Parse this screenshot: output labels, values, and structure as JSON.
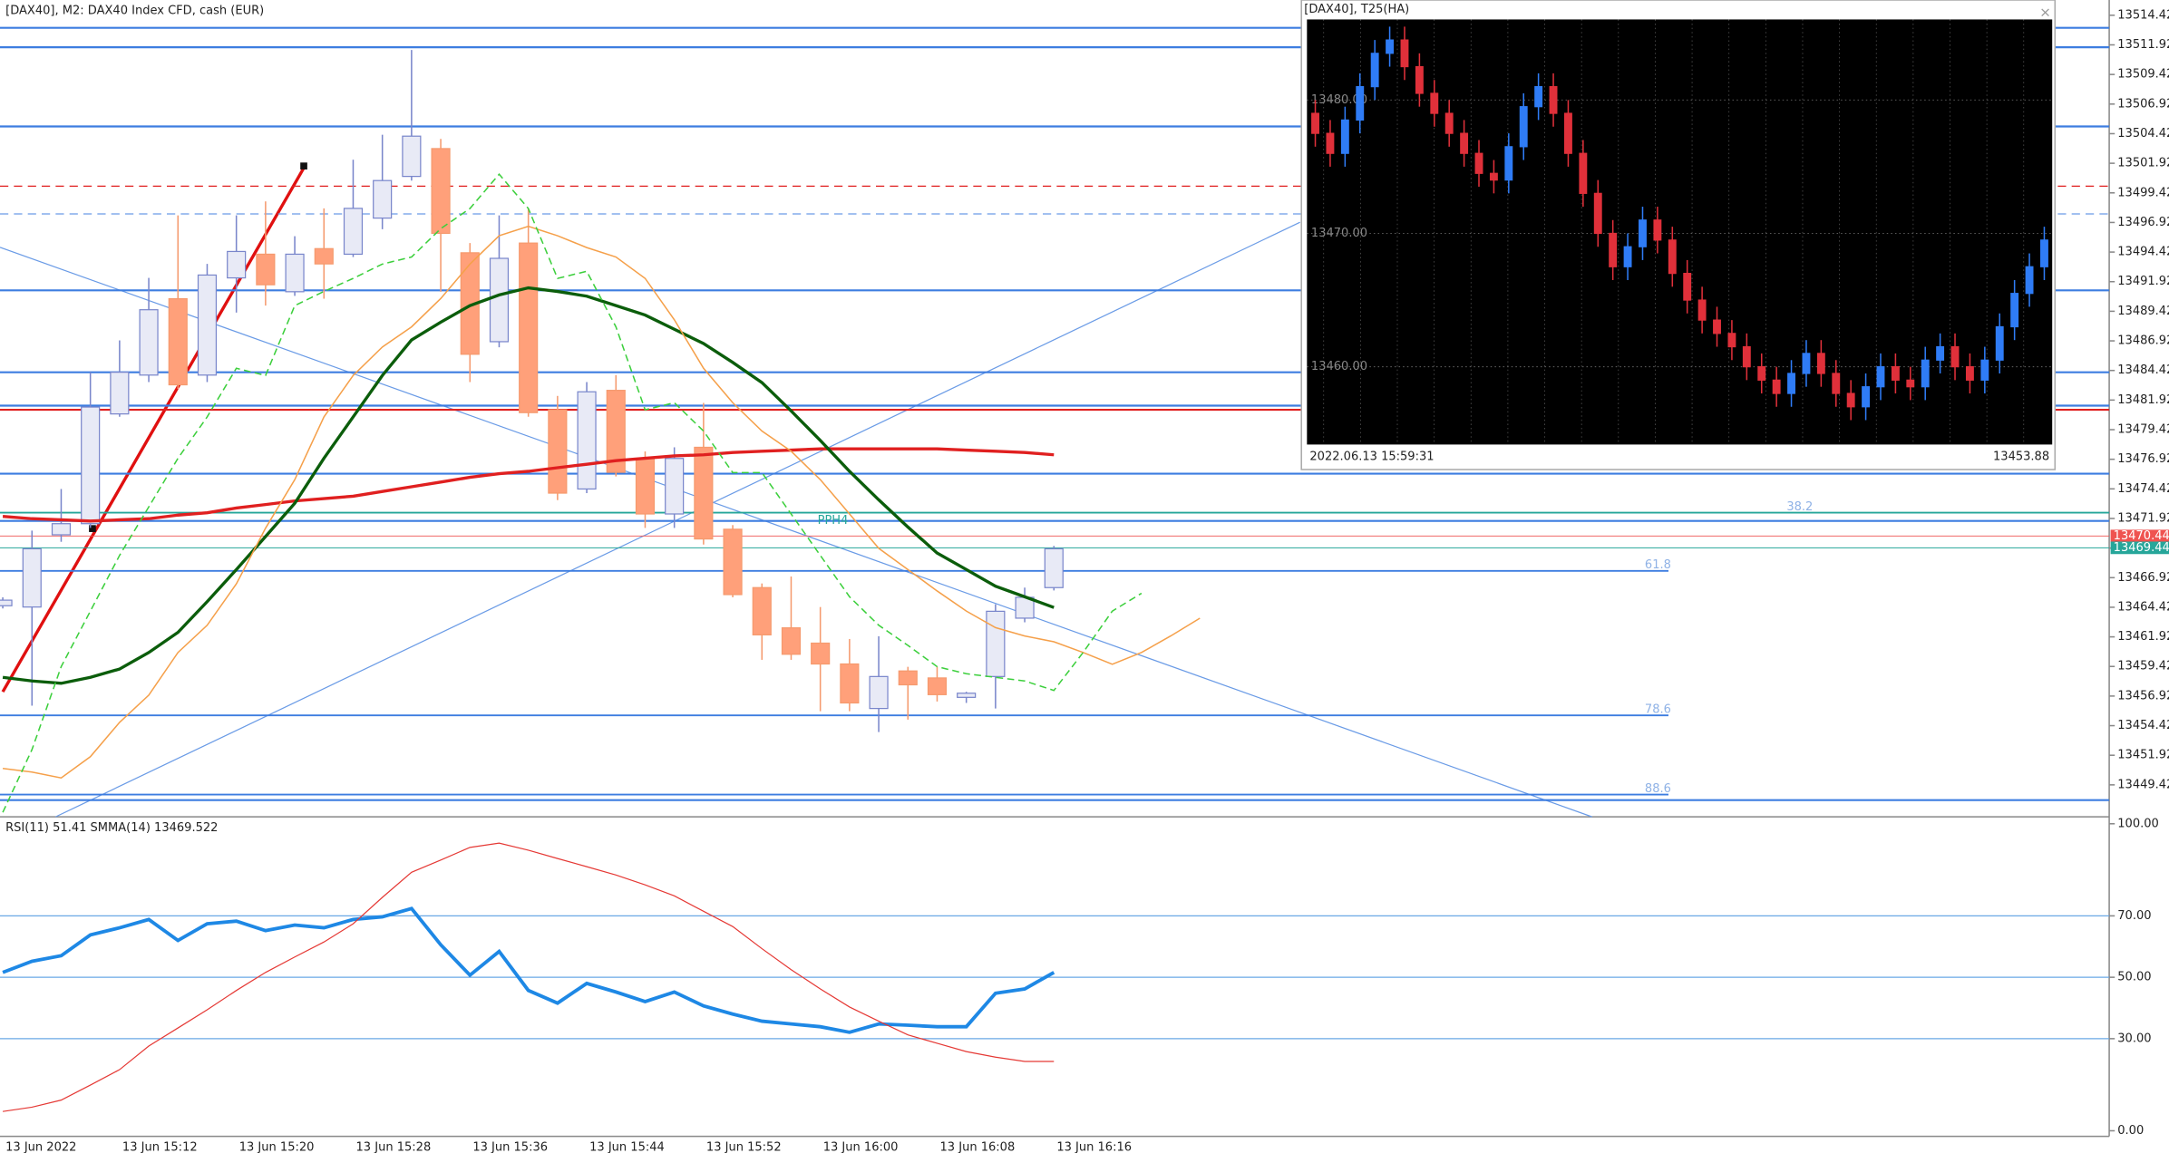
{
  "chart_data": [
    {
      "type": "candlestick",
      "title": "[DAX40], M2:  DAX40 Index CFD, cash (EUR)",
      "categories": [
        "13 Jun 2022",
        null,
        null,
        null,
        "13 Jun 15:12",
        null,
        null,
        null,
        "13 Jun 15:20",
        null,
        null,
        null,
        "13 Jun 15:28",
        null,
        null,
        null,
        "13 Jun 15:36",
        null,
        null,
        null,
        "13 Jun 15:44",
        null,
        null,
        null,
        "13 Jun 15:52",
        null,
        null,
        null,
        "13 Jun 16:00",
        null,
        null,
        null,
        "13 Jun 16:08",
        null,
        null,
        null,
        "13 Jun 16:16",
        null,
        null,
        null,
        null,
        null
      ],
      "open": [
        13464.55,
        13464.44,
        13470.54,
        13471.48,
        13480.75,
        13484.03,
        13490.48,
        13484.03,
        13492.24,
        13494.24,
        13491.07,
        13494.71,
        13494.24,
        13497.29,
        13500.81,
        13503.16,
        13494.36,
        13486.85,
        13495.18,
        13481.1,
        13474.41,
        13482.74,
        13476.99,
        13472.3,
        13477.93,
        13471.01,
        13466.08,
        13462.68,
        13461.39,
        13459.63,
        13455.87,
        13459.04,
        13458.45,
        13456.81,
        13458.57,
        13463.5,
        13466.08,
        null,
        null,
        null,
        null,
        null
      ],
      "high": [
        13465.26,
        13470.89,
        13474.41,
        13484.27,
        13486.96,
        13492.24,
        13497.52,
        13493.42,
        13497.52,
        13498.7,
        13495.76,
        13498.11,
        13502.22,
        13504.33,
        13511.49,
        13503.98,
        13495.18,
        13497.52,
        13498.11,
        13482.27,
        13483.44,
        13484.03,
        13477.58,
        13477.93,
        13481.68,
        13471.36,
        13466.43,
        13467.02,
        13464.44,
        13461.74,
        13461.97,
        13459.39,
        13459.39,
        13457.28,
        13464.67,
        13466.08,
        13469.6,
        null,
        null,
        null,
        null,
        null
      ],
      "low": [
        13464.32,
        13456.11,
        13469.95,
        13471.12,
        13480.51,
        13483.44,
        13482.86,
        13483.44,
        13489.31,
        13489.9,
        13490.72,
        13490.48,
        13494.0,
        13496.35,
        13500.46,
        13491.07,
        13483.44,
        13486.38,
        13480.51,
        13473.47,
        13474.06,
        13475.47,
        13471.12,
        13471.12,
        13469.72,
        13465.26,
        13459.98,
        13459.98,
        13455.64,
        13455.64,
        13453.88,
        13454.93,
        13456.46,
        13456.34,
        13455.87,
        13463.15,
        13465.84,
        null,
        null,
        null,
        null,
        null
      ],
      "close": [
        13465.02,
        13469.36,
        13471.48,
        13481.33,
        13484.27,
        13489.55,
        13483.21,
        13492.48,
        13494.47,
        13491.66,
        13494.24,
        13493.42,
        13498.11,
        13500.46,
        13504.21,
        13496.0,
        13485.79,
        13493.89,
        13480.86,
        13474.06,
        13482.62,
        13475.82,
        13472.3,
        13476.99,
        13470.19,
        13465.49,
        13462.09,
        13460.45,
        13459.63,
        13456.34,
        13458.57,
        13457.87,
        13457.04,
        13457.16,
        13464.08,
        13465.26,
        13469.36,
        null,
        null,
        null,
        null,
        null
      ],
      "up_color": "#e8eaf6",
      "up_edge": "#7986cb",
      "down_color": "#ffa07a",
      "down_edge": "#f59a6e",
      "lines": [
        {
          "color": "#e02020",
          "width": 2.2,
          "dash": false,
          "values": [
            13472.1,
            13471.9,
            13471.8,
            13471.7,
            13471.8,
            13471.9,
            13472.2,
            13472.4,
            13472.8,
            13473.1,
            13473.4,
            13473.6,
            13473.8,
            13474.2,
            13474.6,
            13475.0,
            13475.4,
            13475.7,
            13475.9,
            13476.2,
            13476.5,
            13476.8,
            13477.0,
            13477.2,
            13477.3,
            13477.5,
            13477.6,
            13477.7,
            13477.8,
            13477.8,
            13477.8,
            13477.8,
            13477.8,
            13477.7,
            13477.6,
            13477.5,
            13477.3,
            null,
            null,
            null,
            null,
            null
          ]
        },
        {
          "color": "#0b5d0b",
          "width": 2.2,
          "dash": false,
          "values": [
            13458.5,
            13458.2,
            13458.0,
            13458.5,
            13459.2,
            13460.6,
            13462.3,
            13464.9,
            13467.6,
            13470.4,
            13473.2,
            13477.0,
            13480.5,
            13484.0,
            13487.0,
            13488.5,
            13489.9,
            13490.8,
            13491.4,
            13491.1,
            13490.7,
            13489.9,
            13489.1,
            13487.9,
            13486.7,
            13485.1,
            13483.4,
            13481.0,
            13478.5,
            13475.9,
            13473.5,
            13471.2,
            13469.0,
            13467.6,
            13466.2,
            13465.3,
            13464.4,
            null,
            null,
            null,
            null,
            null
          ]
        },
        {
          "color": "#f5a04a",
          "width": 1,
          "dash": false,
          "values": [
            13450.8,
            13450.5,
            13450.0,
            13451.8,
            13454.7,
            13457.0,
            13460.6,
            13462.9,
            13466.4,
            13471.1,
            13475.2,
            13480.5,
            13484.0,
            13486.4,
            13488.1,
            13490.5,
            13493.4,
            13495.8,
            13496.6,
            13495.8,
            13494.8,
            13494.0,
            13492.2,
            13488.7,
            13484.6,
            13481.7,
            13479.3,
            13477.6,
            13475.2,
            13472.3,
            13469.4,
            13467.6,
            13465.8,
            13464.1,
            13462.7,
            13462.0,
            13461.5,
            13460.6,
            13459.6,
            13460.6,
            13462.0,
            13463.5
          ]
        },
        {
          "color": "#3ccf3c",
          "width": 1,
          "dash": true,
          "values": [
            13447.1,
            13452.4,
            13459.4,
            13464.1,
            13468.8,
            13472.9,
            13477.0,
            13480.5,
            13484.6,
            13484.0,
            13489.9,
            13491.1,
            13492.2,
            13493.4,
            13494.0,
            13496.4,
            13498.1,
            13501.0,
            13498.1,
            13492.2,
            13492.8,
            13488.1,
            13481.1,
            13481.7,
            13479.3,
            13475.8,
            13475.8,
            13472.3,
            13468.8,
            13465.3,
            13462.9,
            13461.2,
            13459.4,
            13458.8,
            13458.5,
            13458.2,
            13457.4,
            13460.6,
            13464.1,
            13465.6,
            null,
            null
          ]
        }
      ],
      "levels": [
        {
          "value": 13513.36,
          "color": "#3d7de0",
          "dash": false
        },
        {
          "value": 13511.72,
          "color": "#3d7de0",
          "dash": false
        },
        {
          "value": 13505.03,
          "color": "#3d7de0",
          "dash": false
        },
        {
          "value": 13499.99,
          "color": "#e02020",
          "dash": true
        },
        {
          "value": 13497.64,
          "color": "#6a9be6",
          "dash": true
        },
        {
          "value": 13491.19,
          "color": "#3d7de0",
          "dash": false
        },
        {
          "value": 13484.27,
          "color": "#3d7de0",
          "dash": false
        },
        {
          "value": 13481.45,
          "color": "#3d7de0",
          "dash": false
        },
        {
          "value": 13481.1,
          "color": "#e02020",
          "dash": false
        },
        {
          "value": 13475.7,
          "color": "#3d7de0",
          "dash": false
        },
        {
          "value": 13471.71,
          "color": "#3d7de0",
          "dash": false,
          "name": "PPH4"
        },
        {
          "value": 13448.13,
          "color": "#3d7de0",
          "dash": false
        }
      ],
      "fibo": [
        {
          "level": 38.2,
          "value": 13472.41,
          "color": "#26a69a"
        },
        {
          "level": 61.8,
          "value": 13467.49,
          "color": "#3d7de0"
        },
        {
          "level": 78.6,
          "value": 13455.29,
          "color": "#3d7de0"
        },
        {
          "level": 88.6,
          "value": 13448.6,
          "color": "#3d7de0"
        }
      ],
      "price_tags": [
        {
          "value": 13470.44,
          "color": "#ef5350"
        },
        {
          "value": 13469.44,
          "color": "#26a69a"
        }
      ],
      "ylim": [
        13446.72,
        13515.71
      ],
      "yticks": [
        13514.42,
        13511.92,
        13509.42,
        13506.92,
        13504.42,
        13501.92,
        13499.42,
        13496.92,
        13494.42,
        13491.92,
        13489.42,
        13486.92,
        13484.42,
        13481.92,
        13479.42,
        13476.92,
        13474.42,
        13471.92,
        13469.42,
        13466.92,
        13464.42,
        13461.92,
        13459.42,
        13456.92,
        13454.42,
        13451.92,
        13449.42
      ]
    },
    {
      "type": "line",
      "title": "RSI(11) 51.41 SMMA(14) 13469.522",
      "series": [
        {
          "color": "#1e88e5",
          "width": 2.5,
          "values": [
            51.6,
            55.2,
            57.0,
            63.8,
            66.1,
            68.8,
            62.0,
            67.4,
            68.3,
            65.2,
            67.0,
            66.1,
            68.8,
            69.7,
            72.4,
            60.6,
            50.7,
            58.4,
            45.7,
            41.6,
            48.0,
            45.2,
            42.1,
            45.2,
            40.7,
            38.0,
            35.7,
            34.8,
            33.9,
            32.1,
            34.8,
            34.4,
            33.9,
            33.9,
            44.8,
            46.2,
            51.6,
            null,
            null,
            null,
            null,
            null
          ]
        },
        {
          "color": "#e53935",
          "width": 0.8,
          "values": [
            6.3,
            7.7,
            10.0,
            14.9,
            19.9,
            27.6,
            33.5,
            39.4,
            45.7,
            51.6,
            56.6,
            61.5,
            67.4,
            76.0,
            84.2,
            88.2,
            92.3,
            93.7,
            91.4,
            88.7,
            86.0,
            83.3,
            80.1,
            76.5,
            71.5,
            66.5,
            59.3,
            52.5,
            46.2,
            40.3,
            35.7,
            31.2,
            28.5,
            25.8,
            24.0,
            22.6,
            22.6,
            null,
            null,
            null,
            null,
            null
          ]
        }
      ],
      "grid_levels": [
        70,
        50,
        30
      ],
      "ylim": [
        -1.81,
        102.26
      ],
      "yticks": [
        {
          "value": 100,
          "label": "100.00"
        },
        {
          "value": 70,
          "label": "70.00"
        },
        {
          "value": 50,
          "label": "50.00"
        },
        {
          "value": 30,
          "label": "30.00"
        },
        {
          "value": 0,
          "label": "0.00"
        }
      ]
    },
    {
      "type": "heikin-ashi",
      "title": "[DAX40], T25(HA)",
      "close_button": "×",
      "footer_time": "2022.06.13 15:59:31",
      "footer_price": 13453.88,
      "open": [
        13479.0,
        13477.5,
        13476.0,
        13478.5,
        13481.0,
        13483.5,
        13484.5,
        13482.5,
        13480.5,
        13479.0,
        13477.5,
        13476.0,
        13474.5,
        13474.0,
        13476.5,
        13479.5,
        13481.0,
        13479.0,
        13476.0,
        13473.0,
        13470.0,
        13467.5,
        13469.0,
        13471.0,
        13469.5,
        13467.0,
        13465.0,
        13463.5,
        13462.5,
        13461.5,
        13460.0,
        13459.0,
        13458.0,
        13459.5,
        13461.0,
        13459.5,
        13458.0,
        13457.0,
        13458.5,
        13460.0,
        13459.0,
        13458.5,
        13460.5,
        13461.5,
        13460.0,
        13459.0,
        13460.5,
        13463.0,
        13465.5,
        13467.5
      ],
      "high": [
        13480.0,
        13478.5,
        13479.5,
        13482.0,
        13484.5,
        13485.5,
        13485.5,
        13483.5,
        13481.5,
        13480.0,
        13478.5,
        13477.0,
        13475.5,
        13477.5,
        13480.5,
        13482.0,
        13482.0,
        13480.0,
        13477.0,
        13474.0,
        13471.0,
        13470.0,
        13472.0,
        13472.0,
        13470.5,
        13468.0,
        13466.0,
        13464.5,
        13463.5,
        13462.5,
        13461.0,
        13460.0,
        13460.5,
        13462.0,
        13462.0,
        13460.5,
        13459.0,
        13459.5,
        13461.0,
        13461.0,
        13460.0,
        13461.5,
        13462.5,
        13462.5,
        13461.0,
        13461.5,
        13464.0,
        13466.5,
        13468.5,
        13470.5
      ],
      "low": [
        13476.5,
        13475.0,
        13475.0,
        13477.5,
        13480.0,
        13482.5,
        13481.5,
        13479.5,
        13478.0,
        13476.5,
        13475.0,
        13473.5,
        13473.0,
        13473.0,
        13475.5,
        13478.5,
        13478.0,
        13475.0,
        13472.0,
        13469.0,
        13466.5,
        13466.5,
        13468.0,
        13468.5,
        13466.0,
        13464.0,
        13462.5,
        13461.5,
        13460.5,
        13459.0,
        13458.0,
        13457.0,
        13457.0,
        13458.5,
        13458.5,
        13457.0,
        13456.0,
        13456.0,
        13457.5,
        13458.0,
        13457.5,
        13457.5,
        13459.5,
        13459.0,
        13458.0,
        13458.0,
        13459.5,
        13462.0,
        13464.5,
        13466.5
      ],
      "close": [
        13477.5,
        13476.0,
        13478.5,
        13481.0,
        13483.5,
        13484.5,
        13482.5,
        13480.5,
        13479.0,
        13477.5,
        13476.0,
        13474.5,
        13474.0,
        13476.5,
        13479.5,
        13481.0,
        13479.0,
        13476.0,
        13473.0,
        13470.0,
        13467.5,
        13469.0,
        13471.0,
        13469.5,
        13467.0,
        13465.0,
        13463.5,
        13462.5,
        13461.5,
        13460.0,
        13459.0,
        13458.0,
        13459.5,
        13461.0,
        13459.5,
        13458.0,
        13457.0,
        13458.5,
        13460.0,
        13459.0,
        13458.5,
        13460.5,
        13461.5,
        13460.0,
        13459.0,
        13460.5,
        13463.0,
        13465.5,
        13467.5,
        13469.5
      ],
      "up_color": "#2f7cf6",
      "down_color": "#e0303a",
      "ylim": [
        13454.17,
        13486.04
      ],
      "yticks": [
        {
          "value": 13480,
          "label": "13480.00"
        },
        {
          "value": 13470,
          "label": "13470.00"
        },
        {
          "value": 13460,
          "label": "13460.00"
        }
      ]
    }
  ]
}
